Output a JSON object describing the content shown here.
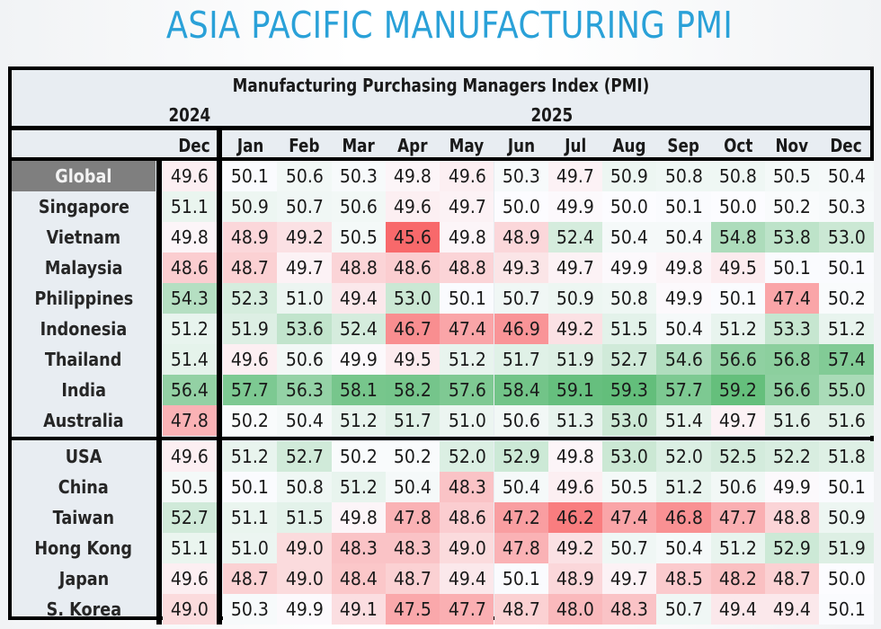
{
  "title": "ASIA PACIFIC MANUFACTURING PMI",
  "chart_data": {
    "type": "heatmap",
    "title": "ASIA PACIFIC MANUFACTURING PMI",
    "subtitle": "Manufacturing Purchasing Managers Index (PMI)",
    "year_groups": [
      {
        "label": "2024",
        "months": [
          "Dec"
        ]
      },
      {
        "label": "2025",
        "months": [
          "Jan",
          "Feb",
          "Mar",
          "Apr",
          "May",
          "Jun",
          "Jul",
          "Aug",
          "Sep",
          "Oct",
          "Nov",
          "Dec"
        ]
      }
    ],
    "columns": [
      "Dec",
      "Jan",
      "Feb",
      "Mar",
      "Apr",
      "May",
      "Jun",
      "Jul",
      "Aug",
      "Sep",
      "Oct",
      "Nov",
      "Dec"
    ],
    "color_scale": {
      "low_color": "#f8696b",
      "mid_color": "#fcfcff",
      "high_color": "#63be7b",
      "midpoint": 50
    },
    "groups": [
      {
        "rows": [
          {
            "name": "Global",
            "highlight": true,
            "values": [
              49.6,
              50.1,
              50.6,
              50.3,
              49.8,
              49.6,
              50.3,
              49.7,
              50.9,
              50.8,
              50.8,
              50.5,
              50.4
            ]
          },
          {
            "name": "Singapore",
            "values": [
              51.1,
              50.9,
              50.7,
              50.6,
              49.6,
              49.7,
              50.0,
              49.9,
              50.0,
              50.1,
              50.0,
              50.2,
              50.3
            ]
          },
          {
            "name": "Vietnam",
            "values": [
              49.8,
              48.9,
              49.2,
              50.5,
              45.6,
              49.8,
              48.9,
              52.4,
              50.4,
              50.4,
              54.8,
              53.8,
              53.0
            ]
          },
          {
            "name": "Malaysia",
            "values": [
              48.6,
              48.7,
              49.7,
              48.8,
              48.6,
              48.8,
              49.3,
              49.7,
              49.9,
              49.8,
              49.5,
              50.1,
              50.1
            ]
          },
          {
            "name": "Philippines",
            "values": [
              54.3,
              52.3,
              51.0,
              49.4,
              53.0,
              50.1,
              50.7,
              50.9,
              50.8,
              49.9,
              50.1,
              47.4,
              50.2
            ]
          },
          {
            "name": "Indonesia",
            "values": [
              51.2,
              51.9,
              53.6,
              52.4,
              46.7,
              47.4,
              46.9,
              49.2,
              51.5,
              50.4,
              51.2,
              53.3,
              51.2
            ]
          },
          {
            "name": "Thailand",
            "values": [
              51.4,
              49.6,
              50.6,
              49.9,
              49.5,
              51.2,
              51.7,
              51.9,
              52.7,
              54.6,
              56.6,
              56.8,
              57.4
            ]
          },
          {
            "name": "India",
            "values": [
              56.4,
              57.7,
              56.3,
              58.1,
              58.2,
              57.6,
              58.4,
              59.1,
              59.3,
              57.7,
              59.2,
              56.6,
              55.0
            ]
          },
          {
            "name": "Australia",
            "values": [
              47.8,
              50.2,
              50.4,
              51.2,
              51.7,
              51.0,
              50.6,
              51.3,
              53.0,
              51.4,
              49.7,
              51.6,
              51.6
            ]
          }
        ]
      },
      {
        "rows": [
          {
            "name": "USA",
            "values": [
              49.6,
              51.2,
              52.7,
              50.2,
              50.2,
              52.0,
              52.9,
              49.8,
              53.0,
              52.0,
              52.5,
              52.2,
              51.8
            ]
          },
          {
            "name": "China",
            "values": [
              50.5,
              50.1,
              50.8,
              51.2,
              50.4,
              48.3,
              50.4,
              49.6,
              50.5,
              51.2,
              50.6,
              49.9,
              50.1
            ]
          },
          {
            "name": "Taiwan",
            "values": [
              52.7,
              51.1,
              51.5,
              49.8,
              47.8,
              48.6,
              47.2,
              46.2,
              47.4,
              46.8,
              47.7,
              48.8,
              50.9
            ]
          },
          {
            "name": "Hong Kong",
            "values": [
              51.1,
              51.0,
              49.0,
              48.3,
              48.3,
              49.0,
              47.8,
              49.2,
              50.7,
              50.4,
              51.2,
              52.9,
              51.9
            ]
          },
          {
            "name": "Japan",
            "values": [
              49.6,
              48.7,
              49.0,
              48.4,
              48.7,
              49.4,
              50.1,
              48.9,
              49.7,
              48.5,
              48.2,
              48.7,
              50.0
            ]
          },
          {
            "name": "S. Korea",
            "values": [
              49.0,
              50.3,
              49.9,
              49.1,
              47.5,
              47.7,
              48.7,
              48.0,
              48.3,
              50.7,
              49.4,
              49.4,
              50.1
            ]
          }
        ]
      }
    ]
  }
}
